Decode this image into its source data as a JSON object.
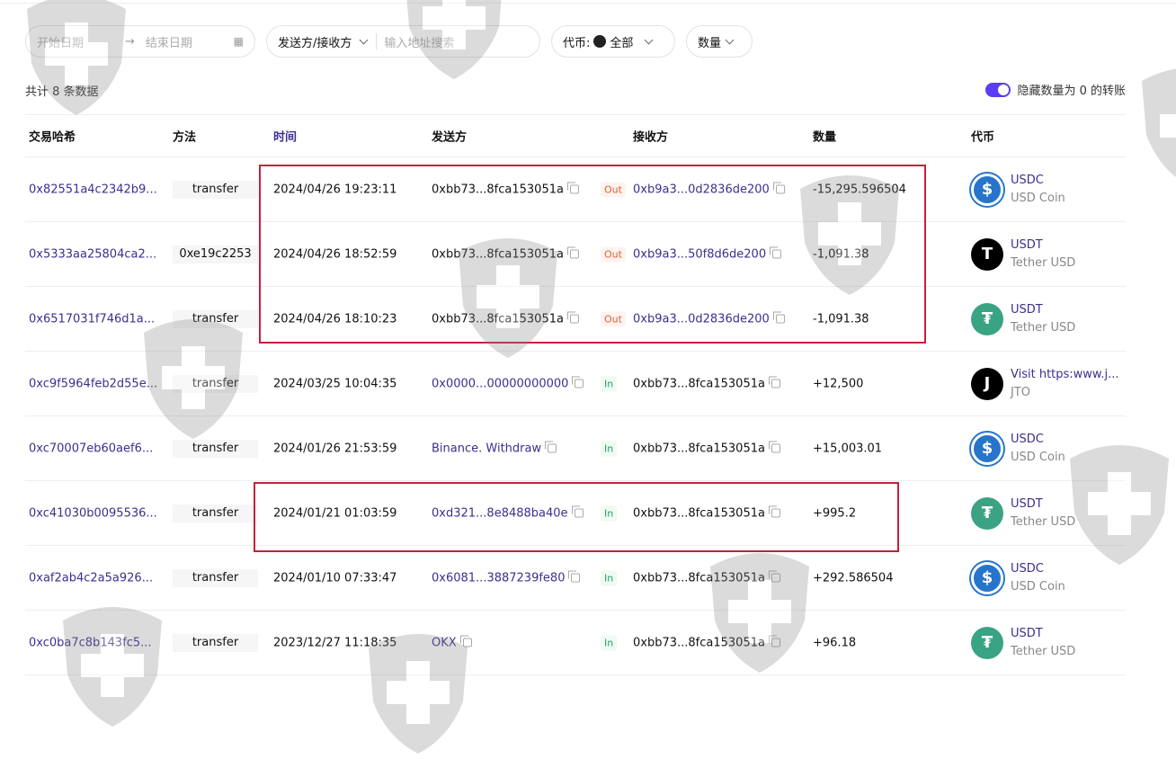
{
  "filters": {
    "start_date_placeholder": "开始日期",
    "end_date_placeholder": "结束日期",
    "direction_select": "发送方/接收方",
    "address_placeholder": "输入地址搜索",
    "token_label": "代币:",
    "token_value": "全部",
    "amount_select": "数量"
  },
  "summary": {
    "count_text": "共计 8 条数据"
  },
  "hide_zero_toggle": {
    "label": "隐藏数量为 0 的转账",
    "on": true
  },
  "table": {
    "headers": {
      "hash": "交易哈希",
      "method": "方法",
      "time": "时间",
      "from": "发送方",
      "to": "接收方",
      "amount": "数量",
      "token": "代币"
    },
    "rows": [
      {
        "hash": "0x82551a4c2342b9...",
        "method": "transfer",
        "time": "2024/04/26 19:23:11",
        "from": "0xbb73...8fca153051a",
        "from_link": false,
        "dir": "Out",
        "to": "0xb9a3...0d2836de200",
        "to_link": true,
        "amount": "-15,295.596504",
        "symbol": "USDC",
        "name": "USD Coin",
        "icon": "usdc-icon"
      },
      {
        "hash": "0x5333aa25804ca2...",
        "method": "0xe19c2253",
        "time": "2024/04/26 18:52:59",
        "from": "0xbb73...8fca153051a",
        "from_link": false,
        "dir": "Out",
        "to": "0xb9a3...50f8d6de200",
        "to_link": true,
        "amount": "-1,091.38",
        "symbol": "USDT",
        "name": "Tether USD",
        "icon": "t-black-icon"
      },
      {
        "hash": "0x6517031f746d1a...",
        "method": "transfer",
        "time": "2024/04/26 18:10:23",
        "from": "0xbb73...8fca153051a",
        "from_link": false,
        "dir": "Out",
        "to": "0xb9a3...0d2836de200",
        "to_link": true,
        "amount": "-1,091.38",
        "symbol": "USDT",
        "name": "Tether USD",
        "icon": "tether-icon"
      },
      {
        "hash": "0xc9f5964feb2d55e...",
        "method": "transfer",
        "time": "2024/03/25 10:04:35",
        "from": "0x0000...00000000000",
        "from_link": true,
        "dir": "In",
        "to": "0xbb73...8fca153051a",
        "to_link": false,
        "amount": "+12,500",
        "symbol": "Visit https:www.j...",
        "name": "JTO",
        "icon": "j-black-icon"
      },
      {
        "hash": "0xc70007eb60aef6...",
        "method": "transfer",
        "time": "2024/01/26 21:53:59",
        "from": "Binance. Withdraw",
        "from_link": true,
        "dir": "In",
        "to": "0xbb73...8fca153051a",
        "to_link": false,
        "amount": "+15,003.01",
        "symbol": "USDC",
        "name": "USD Coin",
        "icon": "usdc-icon"
      },
      {
        "hash": "0xc41030b0095536...",
        "method": "transfer",
        "time": "2024/01/21 01:03:59",
        "from": "0xd321...8e8488ba40e",
        "from_link": true,
        "dir": "In",
        "to": "0xbb73...8fca153051a",
        "to_link": false,
        "amount": "+995.2",
        "symbol": "USDT",
        "name": "Tether USD",
        "icon": "tether-icon"
      },
      {
        "hash": "0xaf2ab4c2a5a926...",
        "method": "transfer",
        "time": "2024/01/10 07:33:47",
        "from": "0x6081...3887239fe80",
        "from_link": true,
        "dir": "In",
        "to": "0xbb73...8fca153051a",
        "to_link": false,
        "amount": "+292.586504",
        "symbol": "USDC",
        "name": "USD Coin",
        "icon": "usdc-icon"
      },
      {
        "hash": "0xc0ba7c8b143fc5...",
        "method": "transfer",
        "time": "2023/12/27 11:18:35",
        "from": "OKX",
        "from_link": true,
        "dir": "In",
        "to": "0xbb73...8fca153051a",
        "to_link": false,
        "amount": "+96.18",
        "symbol": "USDT",
        "name": "Tether USD",
        "icon": "tether-icon"
      }
    ]
  },
  "colors": {
    "link": "#3d2f8f",
    "accent": "#5a3df5",
    "out": "#e0603a",
    "in": "#2aa060",
    "highlight": "#c8203a",
    "usdc": "#2775ca",
    "tether": "#3aa384"
  }
}
